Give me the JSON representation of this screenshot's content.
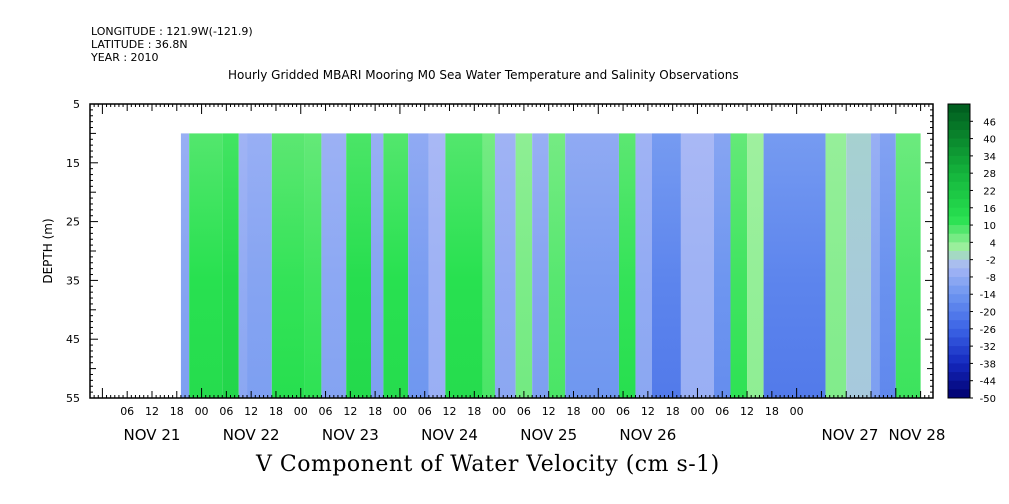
{
  "header": {
    "longitude": "LONGITUDE : 121.9W(-121.9)",
    "latitude": "LATITUDE : 36.8N",
    "year": "YEAR : 2010"
  },
  "chart_data": {
    "type": "heatmap",
    "title": "Hourly Gridded MBARI Mooring M0 Sea Water Temperature and Salinity Observations",
    "xlabel": "V Component of Water Velocity (cm s-1)",
    "ylabel": "DEPTH (m)",
    "ylim": [
      55,
      5
    ],
    "y_ticks": [
      5,
      15,
      25,
      35,
      45,
      55
    ],
    "data_depth_range": [
      10,
      55
    ],
    "x_hour_ticks": [
      "06",
      "12",
      "18",
      "00",
      "06",
      "12",
      "18",
      "00",
      "06",
      "12",
      "18",
      "00",
      "06",
      "12",
      "18",
      "00",
      "06",
      "12",
      "18",
      "00",
      "06",
      "12",
      "18",
      "00",
      "06",
      "12",
      "18",
      "00"
    ],
    "x_days": [
      "NOV 21",
      "NOV 22",
      "NOV 23",
      "NOV 24",
      "NOV 25",
      "NOV 26",
      "NOV 27",
      "NOV 28"
    ],
    "colorbar_labels": [
      "46",
      "40",
      "34",
      "28",
      "22",
      "16",
      "10",
      "4",
      "-2",
      "-8",
      "-14",
      "-20",
      "-26",
      "-32",
      "-38",
      "-44",
      "-50"
    ],
    "colorbar_range": [
      -50,
      52
    ],
    "colorbar_step": 3,
    "bands": [
      {
        "start_hour": 19,
        "end_hour": 21,
        "value": -10
      },
      {
        "start_hour": 21,
        "end_hour": 29,
        "value": 12
      },
      {
        "start_hour": 29,
        "end_hour": 33,
        "value": 14
      },
      {
        "start_hour": 33,
        "end_hour": 35,
        "value": -8
      },
      {
        "start_hour": 35,
        "end_hour": 41,
        "value": -10
      },
      {
        "start_hour": 41,
        "end_hour": 49,
        "value": 11
      },
      {
        "start_hour": 49,
        "end_hour": 53,
        "value": 10
      },
      {
        "start_hour": 53,
        "end_hour": 59,
        "value": -9
      },
      {
        "start_hour": 59,
        "end_hour": 65,
        "value": 13
      },
      {
        "start_hour": 65,
        "end_hour": 68,
        "value": -10
      },
      {
        "start_hour": 68,
        "end_hour": 74,
        "value": 12
      },
      {
        "start_hour": 74,
        "end_hour": 79,
        "value": -12
      },
      {
        "start_hour": 79,
        "end_hour": 83,
        "value": -6
      },
      {
        "start_hour": 83,
        "end_hour": 92,
        "value": 12
      },
      {
        "start_hour": 92,
        "end_hour": 95,
        "value": 8
      },
      {
        "start_hour": 95,
        "end_hour": 100,
        "value": -8
      },
      {
        "start_hour": 100,
        "end_hour": 104,
        "value": 5
      },
      {
        "start_hour": 104,
        "end_hour": 108,
        "value": -10
      },
      {
        "start_hour": 108,
        "end_hour": 112,
        "value": 8
      },
      {
        "start_hour": 112,
        "end_hour": 125,
        "value": -12
      },
      {
        "start_hour": 125,
        "end_hour": 129,
        "value": 11
      },
      {
        "start_hour": 129,
        "end_hour": 133,
        "value": -8
      },
      {
        "start_hour": 133,
        "end_hour": 140,
        "value": -18
      },
      {
        "start_hour": 140,
        "end_hour": 148,
        "value": -6
      },
      {
        "start_hour": 148,
        "end_hour": 152,
        "value": -14
      },
      {
        "start_hour": 152,
        "end_hour": 156,
        "value": 10
      },
      {
        "start_hour": 156,
        "end_hour": 160,
        "value": 3
      },
      {
        "start_hour": 160,
        "end_hour": 175,
        "value": -18
      },
      {
        "start_hour": 175,
        "end_hour": 180,
        "value": 4
      },
      {
        "start_hour": 180,
        "end_hour": 186,
        "value": -2
      },
      {
        "start_hour": 186,
        "end_hour": 188,
        "value": -10
      },
      {
        "start_hour": 188,
        "end_hour": 192,
        "value": -15
      },
      {
        "start_hour": 192,
        "end_hour": 198,
        "value": 9
      }
    ]
  }
}
